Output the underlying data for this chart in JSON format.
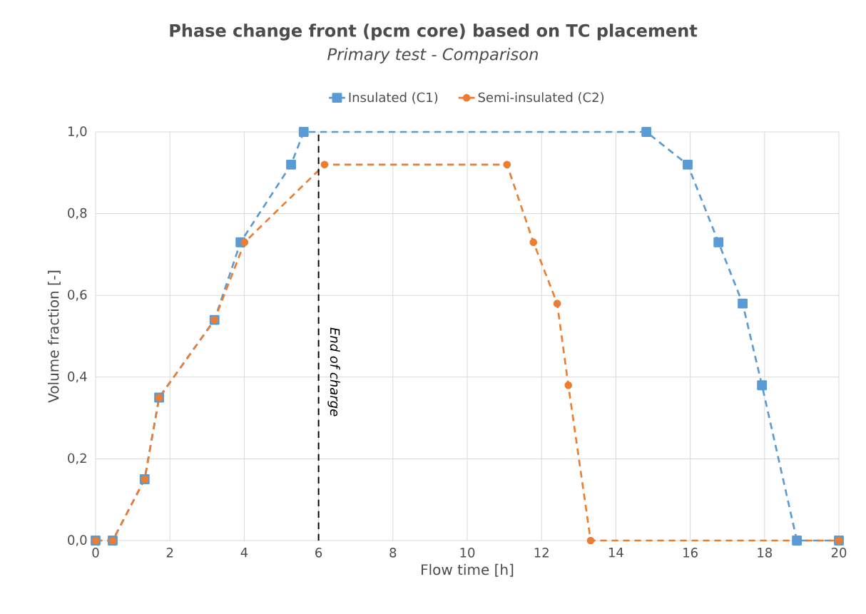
{
  "chart_data": {
    "type": "line",
    "title": "Phase change front (pcm core) based on TC placement",
    "subtitle": "Primary test - Comparison",
    "xlabel": "Flow time [h]",
    "ylabel": "Volume fraction [-]",
    "xlim": [
      0,
      20
    ],
    "ylim": [
      0,
      1
    ],
    "xticks": [
      0,
      2,
      4,
      6,
      8,
      10,
      12,
      14,
      16,
      18,
      20
    ],
    "yticks": [
      {
        "value": 0,
        "label": "0,0"
      },
      {
        "value": 0.2,
        "label": "0,2"
      },
      {
        "value": 0.4,
        "label": "0,4"
      },
      {
        "value": 0.6,
        "label": "0,6"
      },
      {
        "value": 0.8,
        "label": "0,8"
      },
      {
        "value": 1,
        "label": "1,0"
      }
    ],
    "grid": true,
    "legend": "top",
    "line_style": "dashed",
    "ref_lines": [
      {
        "axis": "x",
        "value": 6,
        "label": "End of charge",
        "color": "#000000",
        "line_style": "dashed"
      }
    ],
    "series": [
      {
        "name": "Insulated (C1)",
        "color": "#5b9bd5",
        "marker": "square",
        "x": [
          0,
          0.46,
          1.32,
          1.71,
          3.2,
          3.9,
          5.26,
          5.6,
          14.82,
          15.93,
          16.76,
          17.41,
          17.93,
          18.87,
          20
        ],
        "values": [
          0,
          0,
          0.15,
          0.35,
          0.54,
          0.73,
          0.92,
          1.0,
          1.0,
          0.92,
          0.73,
          0.58,
          0.38,
          0,
          0
        ]
      },
      {
        "name": "Semi-insulated (C2)",
        "color": "#ed7d31",
        "marker": "circle",
        "x": [
          0,
          0.46,
          1.32,
          1.71,
          3.2,
          4.01,
          6.16,
          11.07,
          11.78,
          12.42,
          12.72,
          13.32,
          20
        ],
        "values": [
          0,
          0,
          0.15,
          0.35,
          0.54,
          0.73,
          0.92,
          0.92,
          0.73,
          0.58,
          0.38,
          0,
          0
        ]
      }
    ]
  }
}
